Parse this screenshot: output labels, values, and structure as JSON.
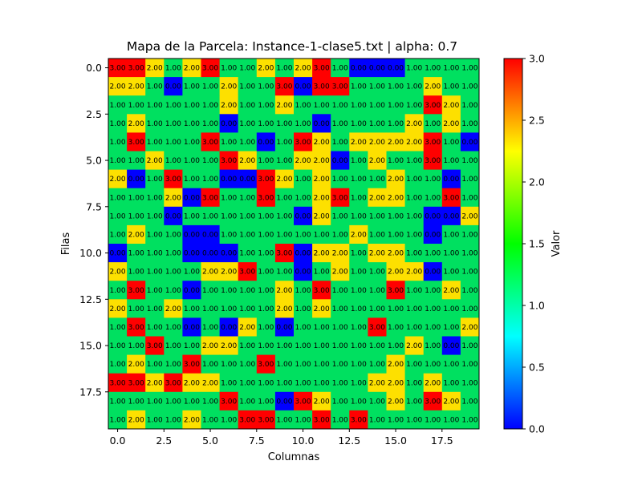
{
  "chart_data": {
    "type": "heatmap",
    "title": "Mapa de la Parcela: Instance-1-clase5.txt | alpha: 0.7",
    "xlabel": "Columnas",
    "ylabel": "Filas",
    "xticks": [
      "0.0",
      "2.5",
      "5.0",
      "7.5",
      "10.0",
      "12.5",
      "15.0",
      "17.5"
    ],
    "yticks": [
      "0.0",
      "2.5",
      "5.0",
      "7.5",
      "10.0",
      "12.5",
      "15.0",
      "17.5"
    ],
    "xlim": [
      -0.5,
      19.5
    ],
    "ylim": [
      19.5,
      -0.5
    ],
    "colorbar": {
      "label": "Valor",
      "range": [
        0,
        3
      ],
      "ticks": [
        "0.0",
        "0.5",
        "1.0",
        "1.5",
        "2.0",
        "2.5",
        "3.0"
      ],
      "colormap": [
        "#0000ff",
        "#00ffff",
        "#00ff00",
        "#ffff00",
        "#ff0000"
      ]
    },
    "cell_colors": {
      "0": "#0000ff",
      "1": "#00e060",
      "2": "#fde000",
      "3": "#ff0000"
    },
    "label_offset": 0.003,
    "values": [
      [
        3,
        3,
        2,
        1,
        2,
        3,
        1,
        1,
        2,
        1,
        2,
        3,
        1,
        0,
        0,
        0,
        1,
        1,
        1,
        1
      ],
      [
        2,
        2,
        1,
        0,
        1,
        1,
        2,
        1,
        1,
        3,
        0,
        3,
        3,
        1,
        1,
        1,
        1,
        2,
        1,
        1
      ],
      [
        1,
        1,
        1,
        1,
        1,
        1,
        2,
        1,
        1,
        2,
        1,
        1,
        1,
        1,
        1,
        1,
        1,
        3,
        2,
        1
      ],
      [
        1,
        2,
        1,
        1,
        1,
        1,
        0,
        1,
        1,
        1,
        1,
        0,
        1,
        1,
        1,
        1,
        2,
        1,
        2,
        1
      ],
      [
        1,
        3,
        1,
        1,
        1,
        3,
        1,
        1,
        0,
        1,
        3,
        2,
        1,
        2,
        2,
        2,
        2,
        3,
        1,
        0
      ],
      [
        1,
        1,
        2,
        1,
        1,
        1,
        3,
        2,
        1,
        1,
        2,
        2,
        0,
        1,
        2,
        1,
        1,
        3,
        1,
        1
      ],
      [
        2,
        0,
        1,
        3,
        1,
        1,
        0,
        0,
        3,
        2,
        1,
        2,
        1,
        1,
        1,
        2,
        1,
        1,
        0,
        1
      ],
      [
        1,
        1,
        1,
        2,
        0,
        3,
        1,
        1,
        3,
        1,
        1,
        2,
        3,
        1,
        2,
        2,
        1,
        1,
        3,
        1
      ],
      [
        1,
        1,
        1,
        0,
        1,
        1,
        1,
        1,
        1,
        1,
        0,
        2,
        1,
        1,
        1,
        1,
        1,
        0,
        0,
        2
      ],
      [
        1,
        2,
        1,
        1,
        0,
        0,
        1,
        1,
        1,
        1,
        1,
        1,
        1,
        2,
        1,
        1,
        1,
        0,
        1,
        1
      ],
      [
        0,
        1,
        1,
        1,
        0,
        0,
        0,
        1,
        1,
        3,
        0,
        2,
        2,
        1,
        2,
        2,
        1,
        1,
        1,
        1
      ],
      [
        2,
        1,
        1,
        1,
        1,
        2,
        2,
        3,
        1,
        1,
        0,
        1,
        2,
        1,
        1,
        2,
        2,
        0,
        1,
        1
      ],
      [
        1,
        3,
        1,
        1,
        0,
        1,
        1,
        1,
        1,
        2,
        1,
        3,
        1,
        1,
        1,
        3,
        1,
        1,
        2,
        1
      ],
      [
        2,
        1,
        1,
        2,
        1,
        1,
        1,
        1,
        1,
        2,
        1,
        2,
        1,
        1,
        1,
        1,
        1,
        1,
        1,
        1
      ],
      [
        1,
        3,
        1,
        1,
        0,
        1,
        0,
        2,
        1,
        0,
        1,
        1,
        1,
        1,
        3,
        1,
        1,
        1,
        1,
        2
      ],
      [
        1,
        1,
        3,
        1,
        1,
        2,
        2,
        1,
        1,
        1,
        1,
        1,
        1,
        1,
        1,
        1,
        2,
        1,
        0,
        1
      ],
      [
        1,
        2,
        1,
        1,
        3,
        1,
        1,
        1,
        3,
        1,
        1,
        1,
        1,
        1,
        1,
        2,
        1,
        1,
        1,
        1
      ],
      [
        3,
        3,
        2,
        3,
        2,
        2,
        1,
        1,
        1,
        1,
        1,
        1,
        1,
        1,
        2,
        2,
        1,
        2,
        1,
        1
      ],
      [
        1,
        1,
        1,
        1,
        1,
        1,
        3,
        1,
        1,
        0,
        3,
        2,
        1,
        1,
        1,
        2,
        1,
        3,
        2,
        1
      ],
      [
        1,
        2,
        1,
        1,
        2,
        1,
        1,
        3,
        3,
        1,
        1,
        3,
        1,
        3,
        1,
        1,
        1,
        1,
        1,
        1
      ]
    ]
  }
}
